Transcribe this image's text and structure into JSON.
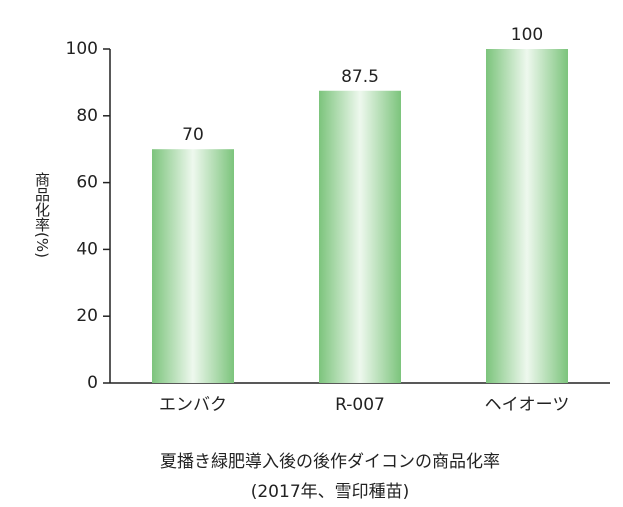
{
  "chart_data": {
    "type": "bar",
    "title": "夏播き緑肥導入後の後作ダイコンの商品化率",
    "subtitle": "(2017年、雪印種苗)",
    "y_label": "商品化率(%)",
    "categories": [
      "エンバク",
      "R-007",
      "ヘイオーツ"
    ],
    "values": [
      70,
      87.5,
      100
    ],
    "color": "#7cc47c",
    "ylim": [
      0,
      100
    ],
    "yticks": [
      0,
      20,
      40,
      60,
      80,
      100
    ],
    "grid": false
  }
}
